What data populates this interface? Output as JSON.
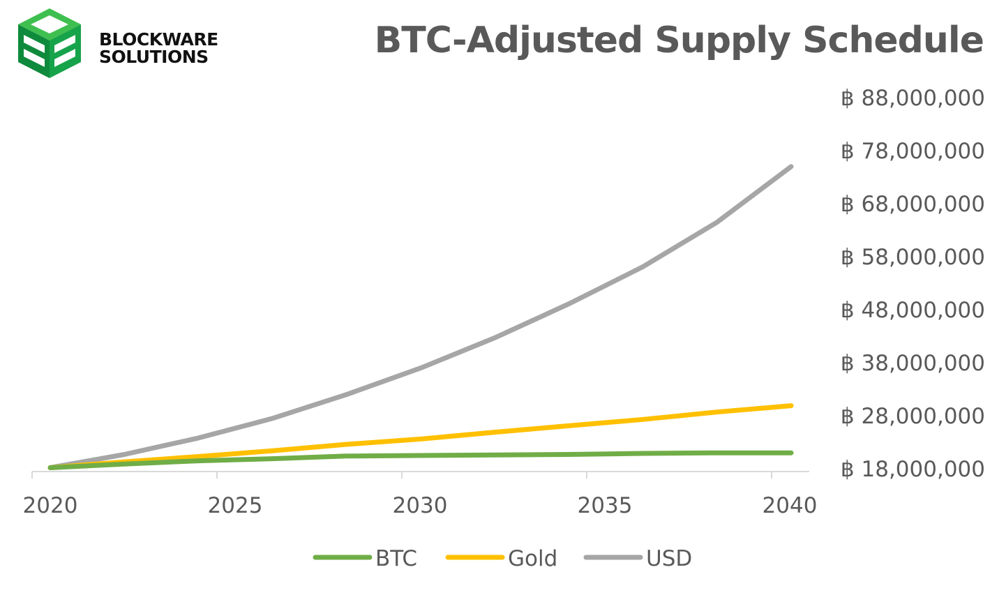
{
  "brand": {
    "line1": "BLOCKWARE",
    "line2": "SOLUTIONS",
    "colors": {
      "dark": "#0f8a3c",
      "light": "#3fbf4f"
    }
  },
  "chart_data": {
    "type": "line",
    "title": "BTC-Adjusted Supply Schedule",
    "x": [
      2020,
      2022,
      2024,
      2026,
      2028,
      2030,
      2032,
      2034,
      2036,
      2038,
      2040
    ],
    "xticks": [
      2020,
      2025,
      2030,
      2035,
      2040
    ],
    "xtick_labels": [
      "2020",
      "2025",
      "2030",
      "2035",
      "2040"
    ],
    "ylim": [
      18000000,
      88000000
    ],
    "yticks": [
      18000000,
      28000000,
      38000000,
      48000000,
      58000000,
      68000000,
      78000000,
      88000000
    ],
    "ytick_labels": [
      "฿ 18,000,000",
      "฿ 28,000,000",
      "฿ 38,000,000",
      "฿ 48,000,000",
      "฿ 58,000,000",
      "฿ 68,000,000",
      "฿ 78,000,000",
      "฿ 88,000,000"
    ],
    "y_axis_side": "right",
    "grid": false,
    "legend_position": "bottom",
    "series": [
      {
        "name": "BTC",
        "color": "#70ad47",
        "values": [
          18200000,
          18900000,
          19500000,
          19900000,
          20400000,
          20500000,
          20600000,
          20700000,
          20900000,
          21000000,
          21000000
        ]
      },
      {
        "name": "Gold",
        "color": "#ffc000",
        "values": [
          18200000,
          19300000,
          20300000,
          21400000,
          22600000,
          23600000,
          24900000,
          26100000,
          27300000,
          28700000,
          29900000
        ]
      },
      {
        "name": "USD",
        "color": "#a6a6a6",
        "values": [
          18200000,
          20700000,
          23800000,
          27500000,
          32000000,
          37000000,
          42700000,
          49100000,
          56100000,
          64500000,
          75000000
        ]
      }
    ]
  }
}
